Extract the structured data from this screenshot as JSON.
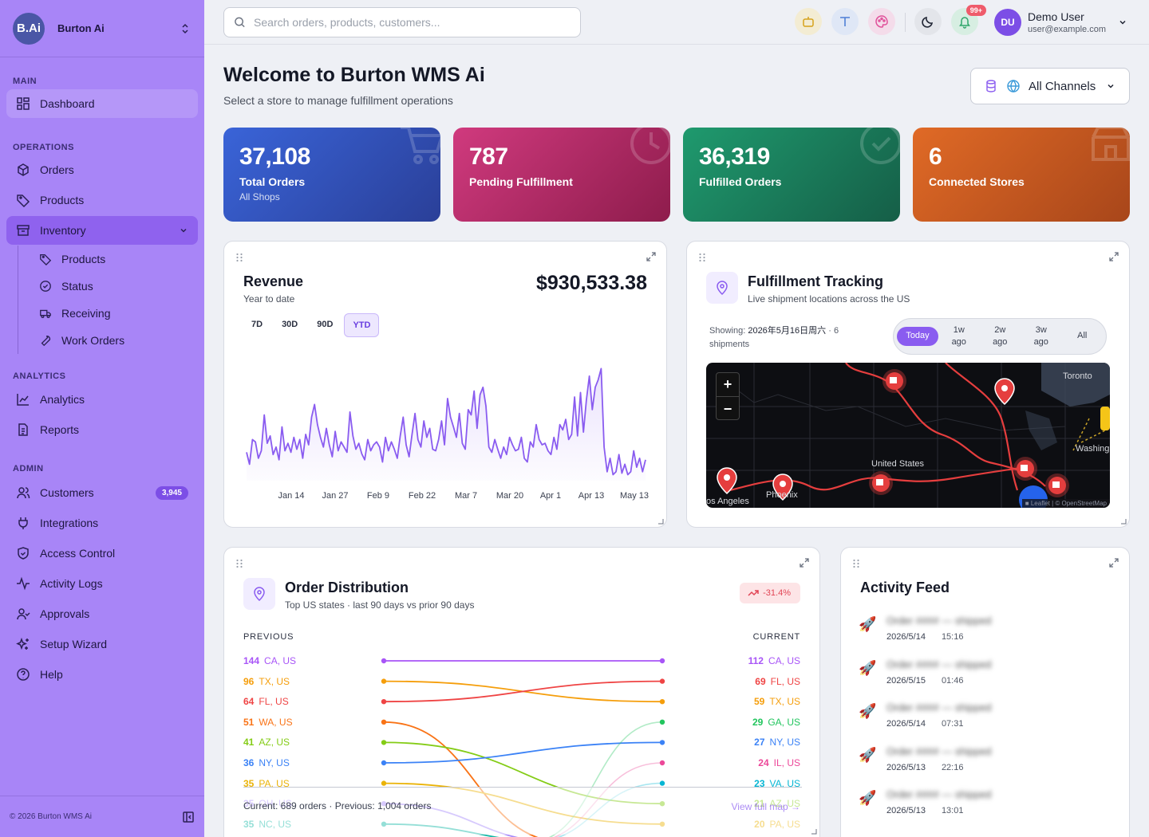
{
  "sidebar": {
    "brand_logo": "B.Ai",
    "brand_name": "Burton Ai",
    "sections": {
      "main": "MAIN",
      "operations": "OPERATIONS",
      "analytics": "ANALYTICS",
      "admin": "ADMIN"
    },
    "items": {
      "dashboard": "Dashboard",
      "orders": "Orders",
      "products": "Products",
      "inventory": "Inventory",
      "inv_products": "Products",
      "inv_status": "Status",
      "inv_receiving": "Receiving",
      "inv_work_orders": "Work Orders",
      "analytics": "Analytics",
      "reports": "Reports",
      "customers": "Customers",
      "customers_badge": "3,945",
      "integrations": "Integrations",
      "access_control": "Access Control",
      "activity_logs": "Activity Logs",
      "approvals": "Approvals",
      "setup_wizard": "Setup Wizard",
      "help": "Help"
    },
    "footer": "© 2026 Burton WMS Ai"
  },
  "header": {
    "search_placeholder": "Search orders, products, customers...",
    "notif_badge": "99+",
    "user_initials": "DU",
    "user_name": "Demo User",
    "user_email": "user@example.com"
  },
  "page": {
    "title": "Welcome to Burton WMS Ai",
    "subtitle": "Select a store to manage fulfillment operations",
    "channel": "All Channels"
  },
  "stats": [
    {
      "value": "37,108",
      "label": "Total Orders",
      "sub": "All Shops",
      "color": "#2f4fae"
    },
    {
      "value": "787",
      "label": "Pending Fulfillment",
      "sub": "",
      "color": "#b52a68"
    },
    {
      "value": "36,319",
      "label": "Fulfilled Orders",
      "sub": "",
      "color": "#1b7a5a"
    },
    {
      "value": "6",
      "label": "Connected Stores",
      "sub": "",
      "color": "#c2551f"
    }
  ],
  "revenue": {
    "title": "Revenue",
    "subtitle": "Year to date",
    "amount": "$930,533.38",
    "ranges": [
      "7D",
      "30D",
      "90D",
      "YTD"
    ],
    "selected_range": "YTD",
    "chart_data": {
      "type": "area",
      "x_ticks": [
        "Jan 14",
        "Jan 27",
        "Feb 9",
        "Feb 22",
        "Mar 7",
        "Mar 20",
        "Apr 1",
        "Apr 13",
        "May 13"
      ],
      "values": [
        38,
        22,
        55,
        52,
        30,
        40,
        88,
        50,
        60,
        35,
        45,
        28,
        72,
        40,
        50,
        38,
        58,
        42,
        55,
        30,
        62,
        48,
        85,
        102,
        75,
        58,
        45,
        70,
        48,
        32,
        66,
        40,
        52,
        45,
        38,
        92,
        60,
        42,
        50,
        36,
        28,
        55,
        40,
        48,
        52,
        45,
        25,
        58,
        40,
        52,
        42,
        30,
        60,
        85,
        48,
        32,
        62,
        90,
        55,
        45,
        80,
        58,
        70,
        42,
        40,
        55,
        80,
        48,
        110,
        85,
        72,
        58,
        90,
        50,
        42,
        95,
        88,
        120,
        70,
        115,
        125,
        100,
        45,
        38,
        55,
        42,
        30,
        45,
        35,
        58,
        48,
        40,
        42,
        58,
        30,
        25,
        52,
        45,
        75,
        55,
        48,
        50,
        40,
        35,
        58,
        42,
        75,
        68,
        82,
        55,
        62,
        112,
        60,
        118,
        65,
        108,
        140,
        95,
        125,
        135,
        150,
        45,
        12,
        30,
        8,
        12,
        35,
        10,
        22,
        8,
        12,
        40,
        18,
        30,
        12,
        28
      ]
    }
  },
  "tracking": {
    "title": "Fulfillment Tracking",
    "subtitle": "Live shipment locations across the US",
    "showing_label": "Showing:",
    "showing_date": "2026年5月16日周六",
    "showing_count": "· 6",
    "showing_suffix": "shipments",
    "periods": [
      {
        "top": "Today",
        "bottom": ""
      },
      {
        "top": "1w",
        "bottom": "ago"
      },
      {
        "top": "2w",
        "bottom": "ago"
      },
      {
        "top": "3w",
        "bottom": "ago"
      },
      {
        "top": "All",
        "bottom": ""
      }
    ],
    "map_labels": {
      "toronto": "Toronto",
      "us": "United States",
      "washington": "Washing",
      "la": "os Angeles",
      "phoenix": "Phoenix"
    },
    "zoom_in": "+",
    "zoom_out": "−",
    "attribution": "■ Leaflet | © OpenStreetMap"
  },
  "distribution": {
    "title": "Order Distribution",
    "subtitle": "Top US states · last 90 days vs prior 90 days",
    "change": "-31.4%",
    "previous_label": "PREVIOUS",
    "current_label": "CURRENT",
    "previous": [
      {
        "n": "144",
        "s": "CA, US",
        "c": "#a855f7"
      },
      {
        "n": "96",
        "s": "TX, US",
        "c": "#f59e0b"
      },
      {
        "n": "64",
        "s": "FL, US",
        "c": "#ef4444"
      },
      {
        "n": "51",
        "s": "WA, US",
        "c": "#f97316"
      },
      {
        "n": "41",
        "s": "AZ, US",
        "c": "#84cc16"
      },
      {
        "n": "36",
        "s": "NY, US",
        "c": "#3b82f6"
      },
      {
        "n": "35",
        "s": "PA, US",
        "c": "#eab308"
      },
      {
        "n": "35",
        "s": "OH, US",
        "c": "#a78bfa"
      },
      {
        "n": "35",
        "s": "NC, US",
        "c": "#14b8a6"
      }
    ],
    "current": [
      {
        "n": "112",
        "s": "CA, US",
        "c": "#a855f7"
      },
      {
        "n": "69",
        "s": "FL, US",
        "c": "#ef4444"
      },
      {
        "n": "59",
        "s": "TX, US",
        "c": "#f59e0b"
      },
      {
        "n": "29",
        "s": "GA, US",
        "c": "#22c55e"
      },
      {
        "n": "27",
        "s": "NY, US",
        "c": "#3b82f6"
      },
      {
        "n": "24",
        "s": "IL, US",
        "c": "#ec4899"
      },
      {
        "n": "23",
        "s": "VA, US",
        "c": "#06b6d4"
      },
      {
        "n": "21",
        "s": "AZ, US",
        "c": "#84cc16"
      },
      {
        "n": "20",
        "s": "PA, US",
        "c": "#eab308"
      }
    ],
    "footer": "Current: 689 orders · Previous: 1,004 orders",
    "link": "View full map →"
  },
  "activity": {
    "title": "Activity Feed",
    "items": [
      {
        "text": "Order #### — shipped",
        "date": "2026/5/14",
        "time": "15:16"
      },
      {
        "text": "Order #### — shipped",
        "date": "2026/5/15",
        "time": "01:46"
      },
      {
        "text": "Order #### — shipped",
        "date": "2026/5/14",
        "time": "07:31"
      },
      {
        "text": "Order #### — shipped",
        "date": "2026/5/13",
        "time": "22:16"
      },
      {
        "text": "Order #### — shipped",
        "date": "2026/5/13",
        "time": "13:01"
      }
    ]
  }
}
